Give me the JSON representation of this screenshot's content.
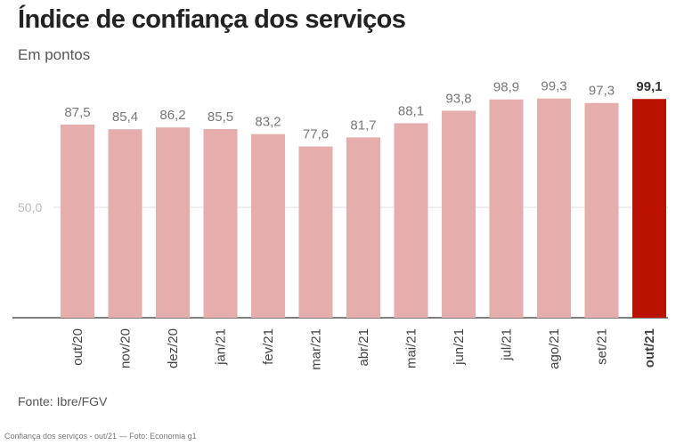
{
  "title": "Índice de confiança dos serviços",
  "subtitle": "Em pontos",
  "source": "Fonte: Ibre/FGV",
  "caption": "Confiança dos serviços - out/21 — Foto: Economia g1",
  "colors": {
    "bar": "#e6adad",
    "highlight": "#bb1100",
    "value_label": "#777777",
    "tick_label": "#444444",
    "axis_label": "#bbbbbb"
  },
  "chart_data": {
    "type": "bar",
    "categories": [
      "out/20",
      "nov/20",
      "dez/20",
      "jan/21",
      "fev/21",
      "mar/21",
      "abr/21",
      "mai/21",
      "jun/21",
      "jul/21",
      "ago/21",
      "set/21",
      "out/21"
    ],
    "values": [
      87.5,
      85.4,
      86.2,
      85.5,
      83.2,
      77.6,
      81.7,
      88.1,
      93.8,
      98.9,
      99.3,
      97.3,
      99.1
    ],
    "value_labels": [
      "87,5",
      "85,4",
      "86,2",
      "85,5",
      "83,2",
      "77,6",
      "81,7",
      "88,1",
      "93,8",
      "98,9",
      "99,3",
      "97,3",
      "99,1"
    ],
    "highlight_index": 12,
    "ylim": [
      0,
      100
    ],
    "yticks": [
      50
    ],
    "ytick_labels": [
      "50,0"
    ],
    "grid": true,
    "xlabel": "",
    "ylabel": ""
  }
}
